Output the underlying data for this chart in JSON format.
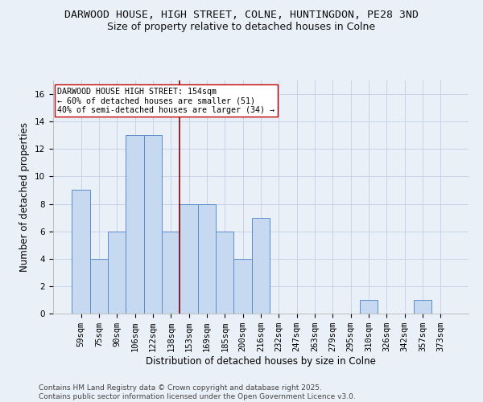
{
  "title": "DARWOOD HOUSE, HIGH STREET, COLNE, HUNTINGDON, PE28 3ND",
  "subtitle": "Size of property relative to detached houses in Colne",
  "xlabel": "Distribution of detached houses by size in Colne",
  "ylabel": "Number of detached properties",
  "bar_labels": [
    "59sqm",
    "75sqm",
    "90sqm",
    "106sqm",
    "122sqm",
    "138sqm",
    "153sqm",
    "169sqm",
    "185sqm",
    "200sqm",
    "216sqm",
    "232sqm",
    "247sqm",
    "263sqm",
    "279sqm",
    "295sqm",
    "310sqm",
    "326sqm",
    "342sqm",
    "357sqm",
    "373sqm"
  ],
  "bar_values": [
    9,
    4,
    6,
    13,
    13,
    6,
    8,
    8,
    6,
    4,
    7,
    0,
    0,
    0,
    0,
    0,
    1,
    0,
    0,
    1,
    0
  ],
  "bar_color": "#c6d9f0",
  "bar_edge_color": "#5b8dc9",
  "grid_color": "#c8d4e8",
  "background_color": "#eaf0f8",
  "vline_x_index": 6,
  "vline_color": "#8b0000",
  "annotation_text": "DARWOOD HOUSE HIGH STREET: 154sqm\n← 60% of detached houses are smaller (51)\n40% of semi-detached houses are larger (34) →",
  "annotation_box_color": "#ffffff",
  "annotation_box_edge": "#c00000",
  "ylim": [
    0,
    17
  ],
  "yticks": [
    0,
    2,
    4,
    6,
    8,
    10,
    12,
    14,
    16
  ],
  "footer": "Contains HM Land Registry data © Crown copyright and database right 2025.\nContains public sector information licensed under the Open Government Licence v3.0.",
  "title_fontsize": 9.5,
  "subtitle_fontsize": 9,
  "tick_fontsize": 7.5,
  "axis_label_fontsize": 8.5,
  "footer_fontsize": 6.5
}
